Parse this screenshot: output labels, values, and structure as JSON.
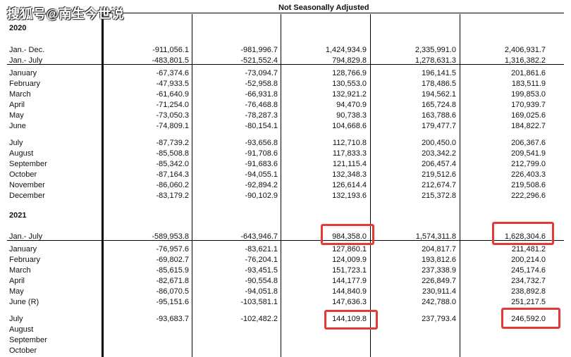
{
  "watermark": "搜狐号@南生今世说",
  "header": "Not Seasonally Adjusted",
  "rows": [
    {
      "type": "year",
      "label": "2020"
    },
    {
      "type": "data",
      "label": "Jan.- Dec.",
      "v": [
        "-911,056.1",
        "-981,996.7",
        "1,424,934.9",
        "2,335,991.0",
        "2,406,931.7"
      ]
    },
    {
      "type": "data",
      "label": "Jan.- July",
      "v": [
        "-483,801.5",
        "-521,552.4",
        "794,829.8",
        "1,278,631.3",
        "1,316,382.2"
      ]
    },
    {
      "type": "data",
      "label": "January",
      "v": [
        "-67,374.6",
        "-73,094.7",
        "128,766.9",
        "196,141.5",
        "201,861.6"
      ]
    },
    {
      "type": "data",
      "label": "February",
      "v": [
        "-47,933.5",
        "-52,958.8",
        "130,553.0",
        "178,486.5",
        "183,511.9"
      ]
    },
    {
      "type": "data",
      "label": "March",
      "v": [
        "-61,640.9",
        "-66,931.8",
        "132,921.2",
        "194,562.1",
        "199,853.0"
      ]
    },
    {
      "type": "data",
      "label": "April",
      "v": [
        "-71,254.0",
        "-76,468.8",
        "94,470.9",
        "165,724.8",
        "170,939.7"
      ]
    },
    {
      "type": "data",
      "label": "May",
      "v": [
        "-73,050.3",
        "-78,287.3",
        "90,738.3",
        "163,788.6",
        "169,025.6"
      ]
    },
    {
      "type": "data",
      "label": "June",
      "v": [
        "-74,809.1",
        "-80,154.1",
        "104,668.6",
        "179,477.7",
        "184,822.7"
      ]
    },
    {
      "type": "data",
      "label": "July",
      "v": [
        "-87,739.2",
        "-93,656.8",
        "112,710.8",
        "200,450.0",
        "206,367.6"
      ]
    },
    {
      "type": "data",
      "label": "August",
      "v": [
        "-85,508.8",
        "-91,708.6",
        "117,833.3",
        "203,342.2",
        "209,541.9"
      ]
    },
    {
      "type": "data",
      "label": "September",
      "v": [
        "-85,342.0",
        "-91,683.6",
        "121,115.4",
        "206,457.4",
        "212,799.0"
      ]
    },
    {
      "type": "data",
      "label": "October",
      "v": [
        "-87,164.3",
        "-94,055.1",
        "132,348.3",
        "219,512.6",
        "226,403.3"
      ]
    },
    {
      "type": "data",
      "label": "November",
      "v": [
        "-86,060.2",
        "-92,894.2",
        "126,614.4",
        "212,674.7",
        "219,508.6"
      ]
    },
    {
      "type": "data",
      "label": "December",
      "v": [
        "-83,179.2",
        "-90,102.9",
        "132,193.6",
        "215,372.8",
        "222,296.6"
      ]
    },
    {
      "type": "year",
      "label": "2021"
    },
    {
      "type": "data",
      "label": "Jan.- July",
      "v": [
        "-589,953.8",
        "-643,946.7",
        "984,358.0",
        "1,574,311.8",
        "1,628,304.6"
      ]
    },
    {
      "type": "data",
      "label": "January",
      "v": [
        "-76,957.6",
        "-83,621.1",
        "127,860.1",
        "204,817.7",
        "211,481.2"
      ]
    },
    {
      "type": "data",
      "label": "February",
      "v": [
        "-69,802.7",
        "-76,204.1",
        "124,009.9",
        "193,812.6",
        "200,214.0"
      ]
    },
    {
      "type": "data",
      "label": "March",
      "v": [
        "-85,615.9",
        "-93,451.5",
        "151,723.1",
        "237,338.9",
        "245,174.6"
      ]
    },
    {
      "type": "data",
      "label": "April",
      "v": [
        "-82,671.8",
        "-90,554.8",
        "144,177.9",
        "226,849.7",
        "234,732.7"
      ]
    },
    {
      "type": "data",
      "label": "May",
      "v": [
        "-86,070.5",
        "-94,051.8",
        "144,840.9",
        "230,911.4",
        "238,892.8"
      ]
    },
    {
      "type": "data",
      "label": "June (R)",
      "v": [
        "-95,151.6",
        "-103,581.1",
        "147,636.3",
        "242,788.0",
        "251,217.5"
      ]
    },
    {
      "type": "data",
      "label": "July",
      "v": [
        "-93,683.7",
        "-102,482.2",
        "144,109.8",
        "237,793.4",
        "246,592.0"
      ]
    },
    {
      "type": "data",
      "label": "August",
      "v": [
        "",
        "",
        "",
        "",
        ""
      ]
    },
    {
      "type": "data",
      "label": "September",
      "v": [
        "",
        "",
        "",
        "",
        ""
      ]
    },
    {
      "type": "data",
      "label": "October",
      "v": [
        "",
        "",
        "",
        "",
        ""
      ]
    }
  ]
}
